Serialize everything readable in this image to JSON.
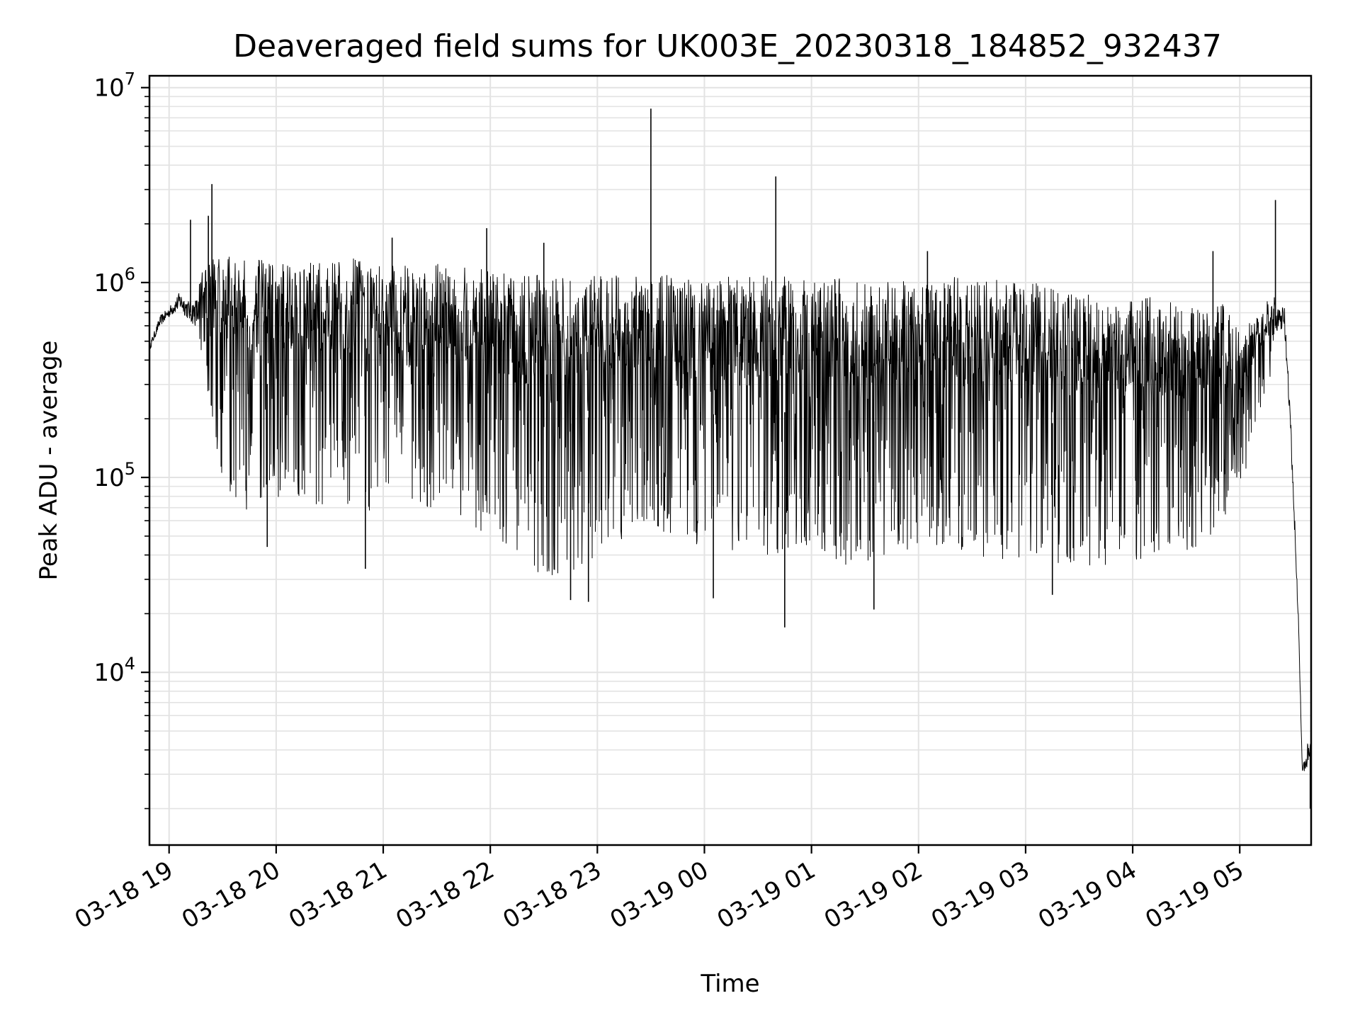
{
  "chart_data": {
    "type": "line",
    "title": "Deaveraged field sums for UK003E_20230318_184852_932437",
    "xlabel": "Time",
    "ylabel": "Peak ADU - average",
    "y_scale": "log",
    "ylim": [
      1300,
      11500000
    ],
    "xlim": [
      "2023-03-18T18:49:00",
      "2023-03-19T05:40:00"
    ],
    "grid": true,
    "line_color": "#000000",
    "grid_color": "#e3e3e3",
    "x_ticks": [
      {
        "t": "2023-03-18T19:00:00",
        "label": "03-18 19"
      },
      {
        "t": "2023-03-18T20:00:00",
        "label": "03-18 20"
      },
      {
        "t": "2023-03-18T21:00:00",
        "label": "03-18 21"
      },
      {
        "t": "2023-03-18T22:00:00",
        "label": "03-18 22"
      },
      {
        "t": "2023-03-18T23:00:00",
        "label": "03-18 23"
      },
      {
        "t": "2023-03-19T00:00:00",
        "label": "03-19 00"
      },
      {
        "t": "2023-03-19T01:00:00",
        "label": "03-19 01"
      },
      {
        "t": "2023-03-19T02:00:00",
        "label": "03-19 02"
      },
      {
        "t": "2023-03-19T03:00:00",
        "label": "03-19 03"
      },
      {
        "t": "2023-03-19T04:00:00",
        "label": "03-19 04"
      },
      {
        "t": "2023-03-19T05:00:00",
        "label": "03-19 05"
      }
    ],
    "y_ticks": [
      {
        "value": 10000,
        "base": "10",
        "exp": "4"
      },
      {
        "value": 100000,
        "base": "10",
        "exp": "5"
      },
      {
        "value": 1000000,
        "base": "10",
        "exp": "6"
      },
      {
        "value": 10000000,
        "base": "10",
        "exp": "7"
      }
    ],
    "series": [
      {
        "x": [
          "2023-03-18T18:49:00",
          "2023-03-18T18:55:00",
          "2023-03-18T19:00:00",
          "2023-03-18T19:06:00",
          "2023-03-18T19:12:00",
          "2023-03-18T19:18:00",
          "2023-03-18T19:20:00",
          "2023-03-18T19:25:00",
          "2023-03-18T19:30:00",
          "2023-03-18T19:35:00",
          "2023-03-18T19:40:00",
          "2023-03-18T19:45:00",
          "2023-03-18T19:50:00",
          "2023-03-18T19:55:00",
          "2023-03-18T20:00:00",
          "2023-03-18T20:05:00",
          "2023-03-18T20:10:00",
          "2023-03-18T20:15:00",
          "2023-03-18T20:20:00",
          "2023-03-18T20:25:00",
          "2023-03-18T20:30:00",
          "2023-03-18T20:35:00",
          "2023-03-18T20:40:00",
          "2023-03-18T20:45:00",
          "2023-03-18T20:50:00",
          "2023-03-18T20:55:00",
          "2023-03-18T21:00:00",
          "2023-03-18T21:10:00",
          "2023-03-18T21:20:00",
          "2023-03-18T21:30:00",
          "2023-03-18T21:40:00",
          "2023-03-18T21:50:00",
          "2023-03-18T22:00:00",
          "2023-03-18T22:10:00",
          "2023-03-18T22:20:00",
          "2023-03-18T22:30:00",
          "2023-03-18T22:40:00",
          "2023-03-18T22:50:00",
          "2023-03-18T23:00:00",
          "2023-03-18T23:10:00",
          "2023-03-18T23:20:00",
          "2023-03-18T23:30:00",
          "2023-03-18T23:40:00",
          "2023-03-18T23:50:00",
          "2023-03-19T00:00:00",
          "2023-03-19T00:10:00",
          "2023-03-19T00:20:00",
          "2023-03-19T00:30:00",
          "2023-03-19T00:40:00",
          "2023-03-19T00:50:00",
          "2023-03-19T01:00:00",
          "2023-03-19T01:10:00",
          "2023-03-19T01:20:00",
          "2023-03-19T01:30:00",
          "2023-03-19T01:40:00",
          "2023-03-19T01:50:00",
          "2023-03-19T02:00:00",
          "2023-03-19T02:10:00",
          "2023-03-19T02:20:00",
          "2023-03-19T02:30:00",
          "2023-03-19T02:40:00",
          "2023-03-19T02:50:00",
          "2023-03-19T03:00:00",
          "2023-03-19T03:10:00",
          "2023-03-19T03:20:00",
          "2023-03-19T03:30:00",
          "2023-03-19T03:40:00",
          "2023-03-19T03:50:00",
          "2023-03-19T04:00:00",
          "2023-03-19T04:10:00",
          "2023-03-19T04:20:00",
          "2023-03-19T04:30:00",
          "2023-03-19T04:40:00",
          "2023-03-19T04:50:00",
          "2023-03-19T05:00:00",
          "2023-03-19T05:10:00",
          "2023-03-19T05:20:00",
          "2023-03-19T05:25:00",
          "2023-03-19T05:29:00",
          "2023-03-19T05:33:00",
          "2023-03-19T05:35:00",
          "2023-03-19T05:37:00",
          "2023-03-19T05:38:00",
          "2023-03-19T05:39:00",
          "2023-03-19T05:40:00"
        ],
        "upper": [
          500000,
          720000,
          800000,
          1000000,
          900000,
          1100000,
          1300000,
          1350000,
          1400000,
          1400000,
          1400000,
          1300000,
          1350000,
          1400000,
          1300000,
          1350000,
          1300000,
          1300000,
          1350000,
          1250000,
          1250000,
          1350000,
          1300000,
          1350000,
          1300000,
          1250000,
          1200000,
          1250000,
          1200000,
          1250000,
          1200000,
          1200000,
          1150000,
          1150000,
          1100000,
          1100000,
          1100000,
          1100000,
          1100000,
          1100000,
          1100000,
          1100000,
          1100000,
          1100000,
          1000000,
          1100000,
          1100000,
          1100000,
          1100000,
          1100000,
          1000000,
          1050000,
          1050000,
          1000000,
          1000000,
          1050000,
          1000000,
          1050000,
          1100000,
          1000000,
          1050000,
          1050000,
          1000000,
          1000000,
          950000,
          900000,
          850000,
          850000,
          800000,
          850000,
          800000,
          750000,
          750000,
          800000,
          550000,
          700000,
          900000,
          900000,
          200000,
          20000,
          3500,
          4000,
          5000,
          4500,
          5000
        ],
        "lower": [
          430000,
          560000,
          620000,
          650000,
          550000,
          450000,
          380000,
          150000,
          100000,
          80000,
          70000,
          65000,
          60000,
          65000,
          70000,
          80000,
          80000,
          80000,
          75000,
          70000,
          70000,
          75000,
          70000,
          80000,
          70000,
          65000,
          90000,
          90000,
          70000,
          70000,
          60000,
          55000,
          50000,
          40000,
          35000,
          30000,
          30000,
          35000,
          40000,
          45000,
          50000,
          60000,
          50000,
          45000,
          45000,
          40000,
          40000,
          40000,
          40000,
          45000,
          45000,
          40000,
          35000,
          35000,
          40000,
          40000,
          45000,
          45000,
          42000,
          40000,
          38000,
          38000,
          38000,
          38000,
          36000,
          35000,
          35000,
          36000,
          36000,
          38000,
          40000,
          42000,
          45000,
          60000,
          80000,
          200000,
          400000,
          500000,
          100000,
          15000,
          3000,
          2800,
          3000,
          3200,
          3200
        ],
        "spikes": [
          {
            "t": "2023-03-18T19:12:00",
            "value": 2100000
          },
          {
            "t": "2023-03-18T19:22:00",
            "value": 2200000
          },
          {
            "t": "2023-03-18T19:24:00",
            "value": 3200000
          },
          {
            "t": "2023-03-18T21:58:00",
            "value": 1900000
          },
          {
            "t": "2023-03-18T22:30:00",
            "value": 1600000
          },
          {
            "t": "2023-03-18T23:30:00",
            "value": 7800000
          },
          {
            "t": "2023-03-19T00:40:00",
            "value": 3500000
          },
          {
            "t": "2023-03-19T05:20:00",
            "value": 2650000
          },
          {
            "t": "2023-03-18T21:05:00",
            "value": 1700000
          },
          {
            "t": "2023-03-19T02:05:00",
            "value": 1450000
          },
          {
            "t": "2023-03-19T04:45:00",
            "value": 1450000
          }
        ],
        "dips": [
          {
            "t": "2023-03-19T00:45:00",
            "value": 17000
          },
          {
            "t": "2023-03-19T01:35:00",
            "value": 21000
          },
          {
            "t": "2023-03-18T22:55:00",
            "value": 23000
          },
          {
            "t": "2023-03-18T22:45:00",
            "value": 23500
          },
          {
            "t": "2023-03-19T00:05:00",
            "value": 24000
          },
          {
            "t": "2023-03-19T03:15:00",
            "value": 25000
          },
          {
            "t": "2023-03-18T20:50:00",
            "value": 34000
          },
          {
            "t": "2023-03-18T19:55:00",
            "value": 44000
          },
          {
            "t": "2023-03-19T05:39:30",
            "value": 2000
          }
        ]
      }
    ]
  }
}
